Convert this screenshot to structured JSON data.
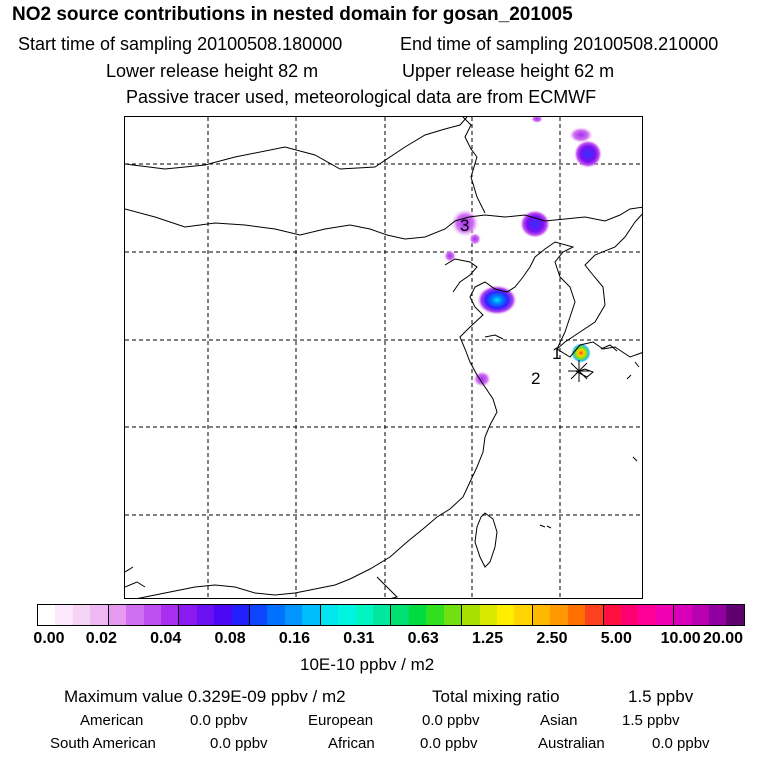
{
  "header": {
    "title": "NO2 source contributions in nested domain for gosan_201005",
    "start_time": "Start time of sampling 20100508.180000",
    "end_time": "End time of sampling 20100508.210000",
    "lower_release": "Lower release height   82 m",
    "upper_release": "Upper release height   62 m",
    "subtitle": "Passive tracer used, meteorological data are from ECMWF"
  },
  "map": {
    "markers": [
      "1",
      "2",
      "3"
    ]
  },
  "colorbar": {
    "colors": [
      "#ffffff",
      "#fbe8fb",
      "#f6d4f6",
      "#eeb8f3",
      "#e69bf1",
      "#d070f0",
      "#c04ff0",
      "#a82ff0",
      "#8a1af0",
      "#6a10f2",
      "#4a08f5",
      "#2020ff",
      "#1045ff",
      "#0070ff",
      "#0095ff",
      "#00bdfb",
      "#00e5ee",
      "#00f5e0",
      "#00f5c0",
      "#00e8a0",
      "#00e070",
      "#00dc40",
      "#30e020",
      "#70e010",
      "#a8e000",
      "#d8e800",
      "#ffee00",
      "#ffd400",
      "#ffb800",
      "#ff9800",
      "#ff7000",
      "#ff4020",
      "#ff1040",
      "#ff0070",
      "#ff0098",
      "#f000b0",
      "#d800b8",
      "#b800b0",
      "#9000a0",
      "#600070"
    ],
    "tick_labels": [
      "0.00",
      "0.02",
      "0.04",
      "0.08",
      "0.16",
      "0.31",
      "0.63",
      "1.25",
      "2.50",
      "5.00",
      "10.00",
      "20.00"
    ],
    "units": "10E-10 ppbv / m2"
  },
  "summary": {
    "max_value": "Maximum value  0.329E-09 ppbv / m2",
    "total_label": "Total mixing ratio",
    "total_value": "1.5 ppbv",
    "regions": [
      {
        "name": "American",
        "value": "0.0 ppbv"
      },
      {
        "name": "European",
        "value": "0.0 ppbv"
      },
      {
        "name": "Asian",
        "value": "1.5 ppbv"
      },
      {
        "name": "South American",
        "value": "0.0 ppbv"
      },
      {
        "name": "African",
        "value": "0.0 ppbv"
      },
      {
        "name": "Australian",
        "value": "0.0 ppbv"
      }
    ]
  }
}
